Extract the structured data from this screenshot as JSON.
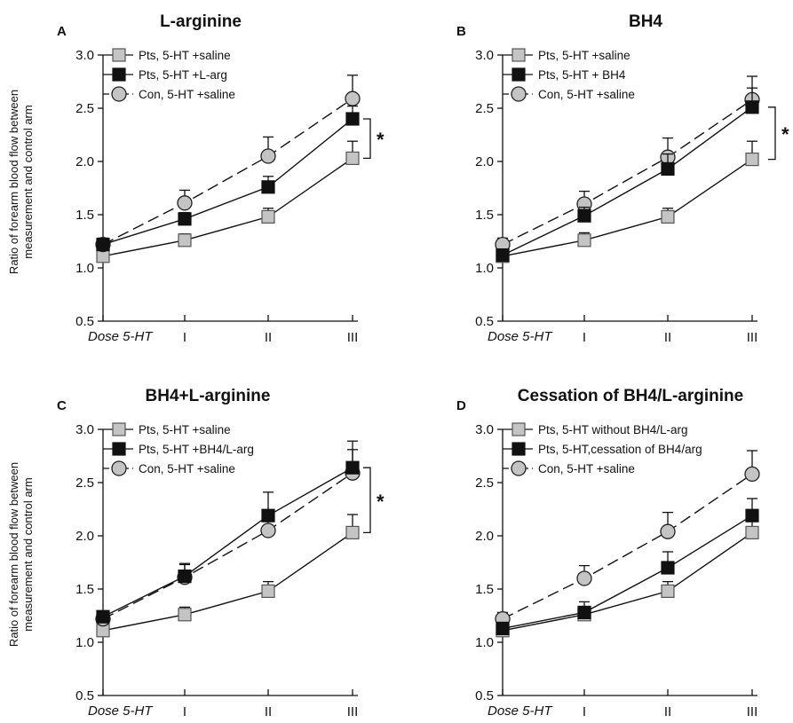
{
  "ylabel_line1": "Ratio of forearm blood flow between",
  "ylabel_line2": "measurement and control arm",
  "chart_data": [
    {
      "type": "line",
      "panel": "A",
      "title": "L-arginine",
      "dose_label": "Dose 5-HT",
      "categories": [
        "I",
        "II",
        "III"
      ],
      "ylim": [
        0.5,
        3.0
      ],
      "yticks": [
        "0.5",
        "1.0",
        "1.5",
        "2.0",
        "2.5",
        "3.0"
      ],
      "significance": "*",
      "series": [
        {
          "name": "Pts, 5-HT +saline",
          "marker": "square",
          "fill": "#c4c4c4",
          "dash": false,
          "x": [
            0,
            1,
            2,
            3
          ],
          "values": [
            1.11,
            1.26,
            1.48,
            2.03
          ],
          "err": [
            0.04,
            0.06,
            0.08,
            0.16
          ]
        },
        {
          "name": "Pts, 5-HT +L-arg",
          "marker": "square",
          "fill": "#111111",
          "dash": false,
          "x": [
            0,
            1,
            2,
            3
          ],
          "values": [
            1.22,
            1.46,
            1.76,
            2.4
          ],
          "err": [
            0.04,
            0.06,
            0.1,
            0.12
          ]
        },
        {
          "name": "Con, 5-HT +saline",
          "marker": "circle",
          "fill": "#c4c4c4",
          "dash": true,
          "x": [
            0,
            1,
            2,
            3
          ],
          "values": [
            1.22,
            1.61,
            2.05,
            2.59
          ],
          "err": [
            0.06,
            0.12,
            0.18,
            0.22
          ]
        }
      ]
    },
    {
      "type": "line",
      "panel": "B",
      "title": "BH4",
      "dose_label": "Dose 5-HT",
      "categories": [
        "I",
        "II",
        "III"
      ],
      "ylim": [
        0.5,
        3.0
      ],
      "yticks": [
        "0.5",
        "1.0",
        "1.5",
        "2.0",
        "2.5",
        "3.0"
      ],
      "significance": "*",
      "series": [
        {
          "name": "Pts, 5-HT +saline",
          "marker": "square",
          "fill": "#c4c4c4",
          "dash": false,
          "x": [
            0,
            1,
            2,
            3
          ],
          "values": [
            1.11,
            1.26,
            1.48,
            2.02
          ],
          "err": [
            0.04,
            0.07,
            0.08,
            0.17
          ]
        },
        {
          "name": "Pts, 5-HT + BH4",
          "marker": "square",
          "fill": "#111111",
          "dash": false,
          "x": [
            0,
            1,
            2,
            3
          ],
          "values": [
            1.12,
            1.49,
            1.93,
            2.51
          ],
          "err": [
            0.04,
            0.08,
            0.14,
            0.18
          ]
        },
        {
          "name": "Con, 5-HT +saline",
          "marker": "circle",
          "fill": "#c4c4c4",
          "dash": true,
          "x": [
            0,
            1,
            2,
            3
          ],
          "values": [
            1.22,
            1.6,
            2.04,
            2.58
          ],
          "err": [
            0.06,
            0.12,
            0.18,
            0.22
          ]
        }
      ]
    },
    {
      "type": "line",
      "panel": "C",
      "title": "BH4+L-arginine",
      "dose_label": "Dose 5-HT",
      "categories": [
        "I",
        "II",
        "III"
      ],
      "ylim": [
        0.5,
        3.0
      ],
      "yticks": [
        "0.5",
        "1.0",
        "1.5",
        "2.0",
        "2.5",
        "3.0"
      ],
      "significance": "*",
      "series": [
        {
          "name": "Pts, 5-HT +saline",
          "marker": "square",
          "fill": "#c4c4c4",
          "dash": false,
          "x": [
            0,
            1,
            2,
            3
          ],
          "values": [
            1.11,
            1.26,
            1.48,
            2.03
          ],
          "err": [
            0.04,
            0.07,
            0.09,
            0.17
          ]
        },
        {
          "name": "Pts, 5-HT +BH4/L-arg",
          "marker": "square",
          "fill": "#111111",
          "dash": false,
          "x": [
            0,
            1,
            2,
            3
          ],
          "values": [
            1.24,
            1.62,
            2.19,
            2.64
          ],
          "err": [
            0.05,
            0.12,
            0.22,
            0.25
          ]
        },
        {
          "name": "Con, 5-HT +saline",
          "marker": "circle",
          "fill": "#c4c4c4",
          "dash": true,
          "x": [
            0,
            1,
            2,
            3
          ],
          "values": [
            1.22,
            1.61,
            2.05,
            2.59
          ],
          "err": [
            0.06,
            0.12,
            0.18,
            0.22
          ]
        }
      ]
    },
    {
      "type": "line",
      "panel": "D",
      "title": "Cessation of BH4/L-arginine",
      "dose_label": "Dose 5-HT",
      "categories": [
        "I",
        "II",
        "III"
      ],
      "ylim": [
        0.5,
        3.0
      ],
      "yticks": [
        "0.5",
        "1.0",
        "1.5",
        "2.0",
        "2.5",
        "3.0"
      ],
      "significance": "",
      "series": [
        {
          "name": "Pts, 5-HT without BH4/L-arg",
          "marker": "square",
          "fill": "#c4c4c4",
          "dash": false,
          "x": [
            0,
            1,
            2,
            3
          ],
          "values": [
            1.11,
            1.26,
            1.48,
            2.03
          ],
          "err": [
            0.04,
            0.07,
            0.09,
            0.17
          ]
        },
        {
          "name": "Pts, 5-HT,cessation of BH4/arg",
          "marker": "square",
          "fill": "#111111",
          "dash": false,
          "x": [
            0,
            1,
            2,
            3
          ],
          "values": [
            1.13,
            1.28,
            1.7,
            2.19
          ],
          "err": [
            0.04,
            0.1,
            0.15,
            0.16
          ]
        },
        {
          "name": "Con, 5-HT +saline",
          "marker": "circle",
          "fill": "#c4c4c4",
          "dash": true,
          "x": [
            0,
            1,
            2,
            3
          ],
          "values": [
            1.22,
            1.6,
            2.04,
            2.58
          ],
          "err": [
            0.06,
            0.12,
            0.18,
            0.22
          ]
        }
      ]
    }
  ]
}
